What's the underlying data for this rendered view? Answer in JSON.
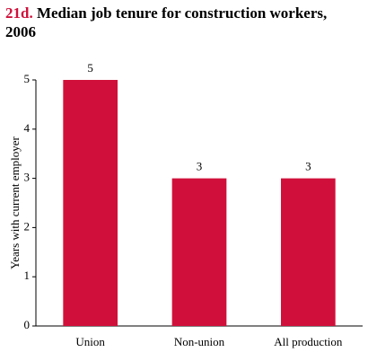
{
  "chart_data": {
    "type": "bar",
    "label": "21d.",
    "title": "Median job tenure for construction workers, 2006",
    "y_label": "Years with current employer",
    "categories": [
      "Union",
      "Non-union",
      "All production"
    ],
    "values": [
      5,
      3,
      3
    ],
    "color": "#d0103a",
    "ylim": [
      0,
      5
    ],
    "yticks": [
      0,
      1,
      2,
      3,
      4,
      5
    ],
    "grid": false
  }
}
